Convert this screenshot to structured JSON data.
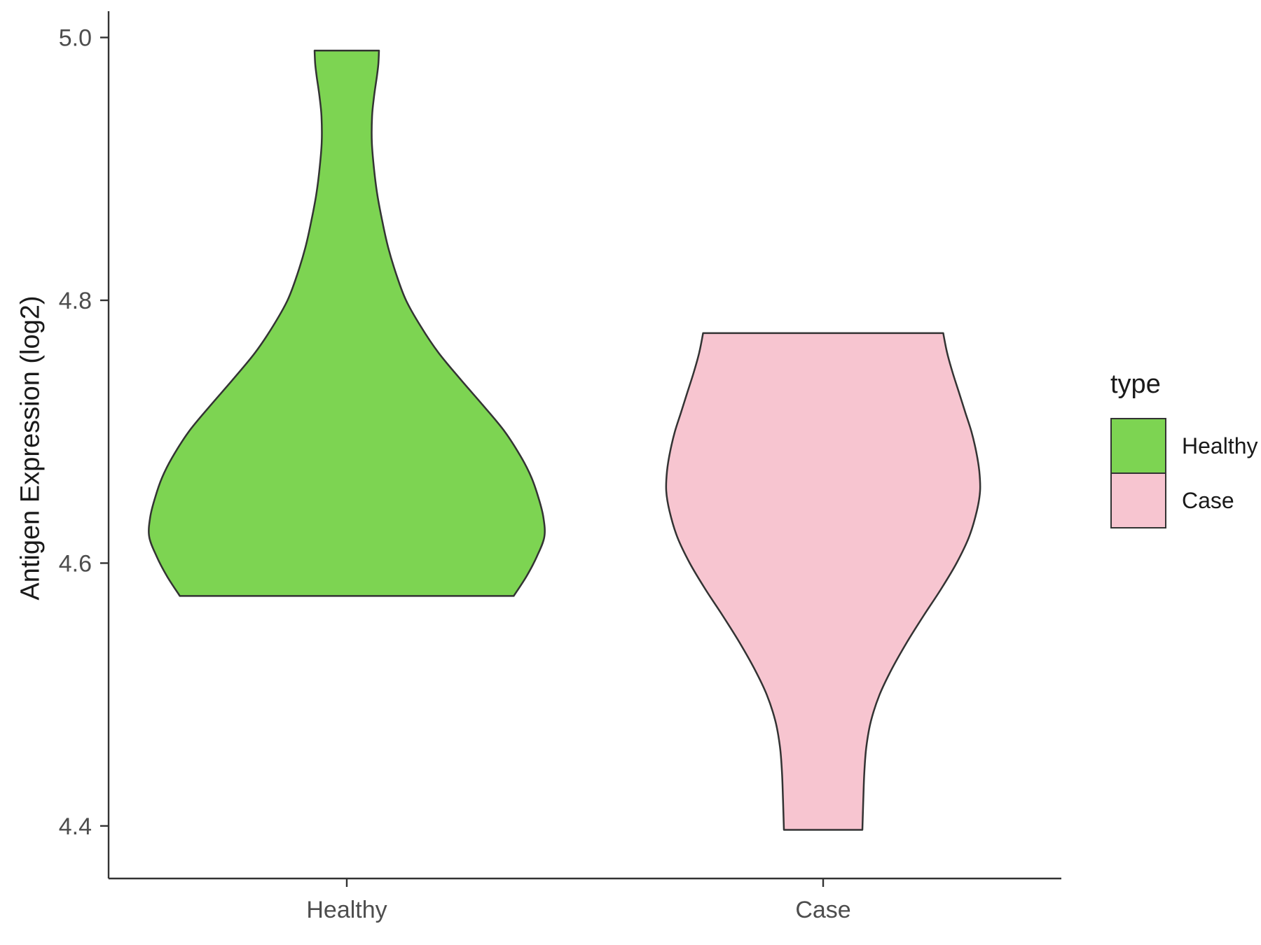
{
  "chart_data": {
    "type": "violin",
    "title": "",
    "xlabel": "",
    "ylabel": "Antigen Expression (log2)",
    "categories": [
      "Healthy",
      "Case"
    ],
    "yticks": [
      4.4,
      4.6,
      4.8,
      5.0
    ],
    "ytick_labels": [
      "4.4",
      "4.6",
      "4.8",
      "5.0"
    ],
    "ylim": [
      4.36,
      5.02
    ],
    "grid": false,
    "background": "#ffffff",
    "stroke": "#333333",
    "axis_text_color": "#4d4d4d",
    "axis_title_color": "#1a1a1a",
    "legend": {
      "title": "type",
      "position": "right",
      "entries": [
        {
          "label": "Healthy",
          "color": "#7dd452"
        },
        {
          "label": "Case",
          "color": "#f7c5d0"
        }
      ]
    },
    "series": [
      {
        "name": "Healthy",
        "color": "#7dd452",
        "center_index": 0,
        "max_halfwidth": 282,
        "value_range": [
          4.575,
          4.99
        ],
        "profile": [
          [
            4.575,
            0.845
          ],
          [
            4.59,
            0.91
          ],
          [
            4.605,
            0.962
          ],
          [
            4.62,
            1.0
          ],
          [
            4.635,
            0.995
          ],
          [
            4.65,
            0.97
          ],
          [
            4.665,
            0.935
          ],
          [
            4.68,
            0.885
          ],
          [
            4.7,
            0.8
          ],
          [
            4.72,
            0.69
          ],
          [
            4.74,
            0.575
          ],
          [
            4.76,
            0.465
          ],
          [
            4.78,
            0.375
          ],
          [
            4.8,
            0.3
          ],
          [
            4.82,
            0.25
          ],
          [
            4.84,
            0.21
          ],
          [
            4.86,
            0.18
          ],
          [
            4.88,
            0.155
          ],
          [
            4.9,
            0.138
          ],
          [
            4.92,
            0.127
          ],
          [
            4.94,
            0.128
          ],
          [
            4.955,
            0.138
          ],
          [
            4.97,
            0.152
          ],
          [
            4.98,
            0.16
          ],
          [
            4.99,
            0.163
          ]
        ]
      },
      {
        "name": "Case",
        "color": "#f7c5d0",
        "center_index": 1,
        "max_halfwidth": 224,
        "value_range": [
          4.397,
          4.775
        ],
        "profile": [
          [
            4.397,
            0.25
          ],
          [
            4.42,
            0.256
          ],
          [
            4.44,
            0.262
          ],
          [
            4.46,
            0.275
          ],
          [
            4.48,
            0.305
          ],
          [
            4.5,
            0.36
          ],
          [
            4.52,
            0.44
          ],
          [
            4.54,
            0.535
          ],
          [
            4.56,
            0.64
          ],
          [
            4.58,
            0.75
          ],
          [
            4.6,
            0.85
          ],
          [
            4.62,
            0.93
          ],
          [
            4.64,
            0.98
          ],
          [
            4.655,
            1.0
          ],
          [
            4.67,
            0.995
          ],
          [
            4.685,
            0.975
          ],
          [
            4.7,
            0.945
          ],
          [
            4.715,
            0.905
          ],
          [
            4.73,
            0.865
          ],
          [
            4.745,
            0.825
          ],
          [
            4.76,
            0.79
          ],
          [
            4.775,
            0.765
          ]
        ]
      }
    ]
  }
}
